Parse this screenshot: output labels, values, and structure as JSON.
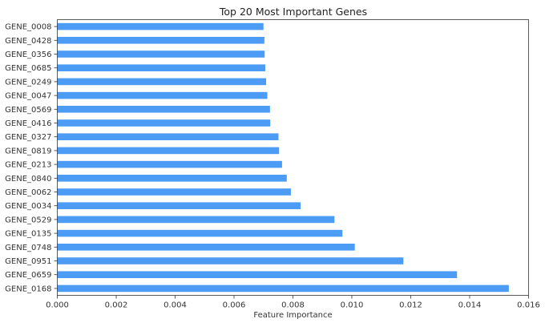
{
  "chart_data": {
    "type": "bar",
    "orientation": "horizontal",
    "title": "Top 20 Most Important Genes",
    "xlabel": "Feature Importance",
    "ylabel": "",
    "xlim": [
      0,
      0.016
    ],
    "xticks": [
      "0.000",
      "0.002",
      "0.004",
      "0.006",
      "0.008",
      "0.010",
      "0.012",
      "0.014",
      "0.016"
    ],
    "grid": false,
    "bar_color": "#4C9BF5",
    "categories": [
      "GENE_0008",
      "GENE_0428",
      "GENE_0356",
      "GENE_0685",
      "GENE_0249",
      "GENE_0047",
      "GENE_0569",
      "GENE_0416",
      "GENE_0327",
      "GENE_0819",
      "GENE_0213",
      "GENE_0840",
      "GENE_0062",
      "GENE_0034",
      "GENE_0529",
      "GENE_0135",
      "GENE_0748",
      "GENE_0951",
      "GENE_0659",
      "GENE_0168"
    ],
    "values": [
      0.007,
      0.00703,
      0.00704,
      0.00706,
      0.00709,
      0.00713,
      0.00722,
      0.00723,
      0.00751,
      0.00753,
      0.00763,
      0.00779,
      0.00793,
      0.00826,
      0.00941,
      0.00968,
      0.0101,
      0.01175,
      0.01357,
      0.01533
    ]
  }
}
